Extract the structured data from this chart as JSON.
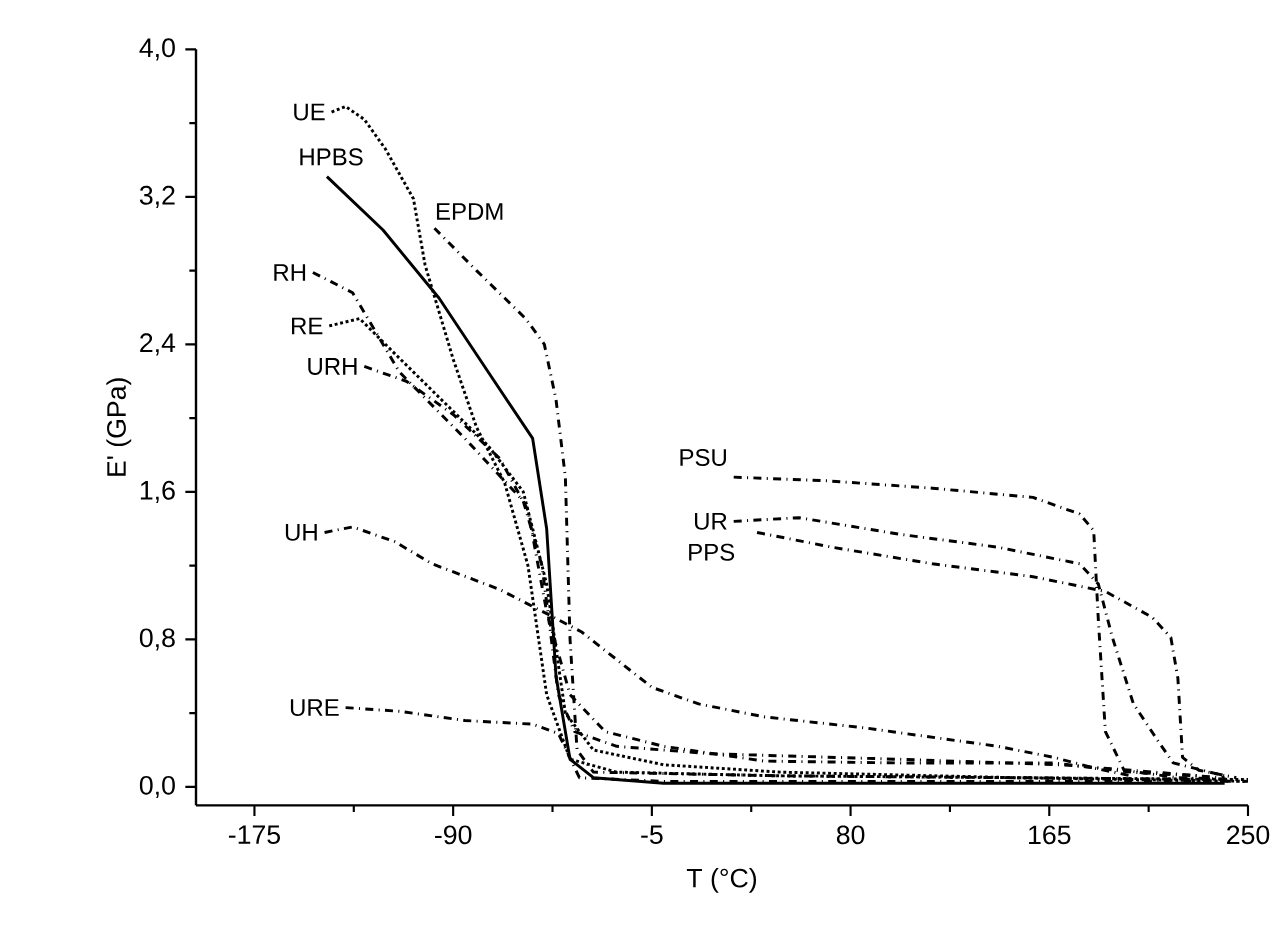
{
  "chart_data": {
    "type": "line",
    "xlabel": "T (°C)",
    "ylabel": "E' (GPa)",
    "xlim": [
      -200,
      250
    ],
    "ylim": [
      -0.1,
      4.0
    ],
    "xticks": [
      -175,
      -90,
      -5,
      80,
      165,
      250
    ],
    "yticks": [
      {
        "value": 0,
        "label": "0,0"
      },
      {
        "value": 0.8,
        "label": "0,8"
      },
      {
        "value": 1.6,
        "label": "1,6"
      },
      {
        "value": 2.4,
        "label": "2,4"
      },
      {
        "value": 3.2,
        "label": "3,2"
      },
      {
        "value": 4.0,
        "label": "4,0"
      }
    ],
    "series": [
      {
        "name": "UE",
        "color": "#000000",
        "line_style": "dotted",
        "x": [
          -142,
          -136,
          -128,
          -119,
          -107,
          -102,
          -90,
          -80,
          -68,
          -58,
          -50,
          -40,
          -20,
          50,
          150,
          250
        ],
        "values": [
          3.66,
          3.69,
          3.62,
          3.46,
          3.19,
          2.83,
          2.32,
          1.95,
          1.65,
          1.2,
          0.5,
          0.15,
          0.08,
          0.06,
          0.05,
          0.04
        ]
      },
      {
        "name": "HPBS",
        "color": "#000000",
        "line_style": "solid",
        "x": [
          -144,
          -120,
          -96,
          -75,
          -56,
          -50,
          -46,
          -40,
          -30,
          0,
          100,
          200,
          240
        ],
        "values": [
          3.31,
          3.02,
          2.65,
          2.25,
          1.89,
          1.4,
          0.6,
          0.15,
          0.05,
          0.02,
          0.02,
          0.02,
          0.02
        ]
      },
      {
        "name": "EPDM",
        "color": "#000000",
        "line_style": "dashed",
        "x": [
          -98,
          -80,
          -59,
          -51,
          -46,
          -42,
          -40,
          -37,
          -30,
          50,
          150,
          240
        ],
        "values": [
          3.03,
          2.8,
          2.54,
          2.4,
          2.1,
          1.68,
          0.8,
          0.2,
          0.08,
          0.06,
          0.05,
          0.04
        ]
      },
      {
        "name": "RH",
        "color": "#000000",
        "line_style": "dashed",
        "x": [
          -150,
          -133,
          -113,
          -85,
          -60,
          -52,
          -45,
          -38,
          -20,
          20,
          100,
          170,
          230
        ],
        "values": [
          2.79,
          2.68,
          2.25,
          1.89,
          1.55,
          1.2,
          0.5,
          0.3,
          0.22,
          0.18,
          0.15,
          0.12,
          0.06
        ]
      },
      {
        "name": "RE",
        "color": "#000000",
        "line_style": "dotted",
        "x": [
          -143,
          -130,
          -115,
          -95,
          -75,
          -60,
          -50,
          -42,
          -30,
          0,
          50,
          150,
          250
        ],
        "values": [
          2.5,
          2.54,
          2.35,
          2.1,
          1.85,
          1.6,
          1.1,
          0.4,
          0.2,
          0.12,
          0.08,
          0.05,
          0.03
        ]
      },
      {
        "name": "URH",
        "color": "#000000",
        "line_style": "dashed",
        "x": [
          -128,
          -110,
          -90,
          -70,
          -58,
          -50,
          -40,
          -25,
          0,
          43,
          100,
          167,
          200,
          240
        ],
        "values": [
          2.28,
          2.2,
          2.02,
          1.78,
          1.5,
          0.95,
          0.5,
          0.3,
          0.22,
          0.14,
          0.13,
          0.13,
          0.08,
          0.05
        ]
      },
      {
        "name": "UH",
        "color": "#000000",
        "line_style": "dashed",
        "x": [
          -145,
          -133,
          -115,
          -99,
          -70,
          -47,
          -35,
          -25,
          -5,
          15,
          43,
          86,
          143,
          167,
          185,
          200
        ],
        "values": [
          1.38,
          1.41,
          1.33,
          1.21,
          1.07,
          0.92,
          0.84,
          0.74,
          0.54,
          0.45,
          0.38,
          0.32,
          0.22,
          0.16,
          0.1,
          0.06
        ]
      },
      {
        "name": "URE",
        "color": "#000000",
        "line_style": "dashed",
        "x": [
          -136,
          -113,
          -85,
          -56,
          -45,
          -36,
          0,
          100,
          200,
          250
        ],
        "values": [
          0.43,
          0.41,
          0.36,
          0.34,
          0.29,
          0.05,
          0.03,
          0.03,
          0.03,
          0.03
        ]
      },
      {
        "name": "PSU",
        "color": "#000000",
        "line_style": "dashed",
        "x": [
          30,
          70,
          115,
          158,
          178,
          184,
          186,
          189,
          197,
          220,
          245
        ],
        "values": [
          1.68,
          1.66,
          1.62,
          1.57,
          1.48,
          1.39,
          0.9,
          0.3,
          0.09,
          0.05,
          0.04
        ]
      },
      {
        "name": "UR",
        "color": "#000000",
        "line_style": "dashed",
        "x": [
          30,
          58,
          101,
          143,
          178,
          186,
          192,
          201,
          212,
          218,
          240
        ],
        "values": [
          1.44,
          1.46,
          1.37,
          1.3,
          1.21,
          1.1,
          0.81,
          0.45,
          0.24,
          0.13,
          0.06
        ]
      },
      {
        "name": "PPS",
        "color": "#000000",
        "line_style": "dashed",
        "x": [
          40,
          72,
          115,
          158,
          189,
          209,
          217,
          220,
          222,
          229,
          245
        ],
        "values": [
          1.38,
          1.3,
          1.21,
          1.14,
          1.06,
          0.92,
          0.81,
          0.59,
          0.16,
          0.09,
          0.05
        ]
      }
    ]
  }
}
